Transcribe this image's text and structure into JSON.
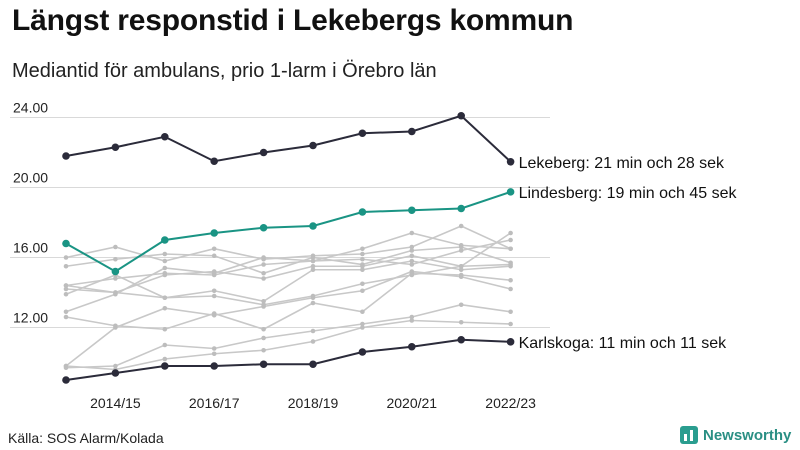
{
  "title": "Längst responstid i Lekebergs kommun",
  "subtitle": "Mediantid för ambulans, prio 1-larm i Örebro län",
  "source": "Källa: SOS Alarm/Kolada",
  "logo_text": "Newsworthy",
  "chart_data": {
    "type": "line",
    "title": "Längst responstid i Lekebergs kommun",
    "subtitle": "Mediantid för ambulans, prio 1-larm i Örebro län",
    "x": [
      2013,
      2014,
      2015,
      2016,
      2017,
      2018,
      2019,
      2020,
      2021,
      2022,
      2023
    ],
    "x_tick_labels": [
      "2014/15",
      "2016/17",
      "2018/19",
      "2020/21",
      "2022/23"
    ],
    "ylim": [
      9.0,
      25.0
    ],
    "y_ticks": [
      12,
      16,
      20,
      24
    ],
    "y_tick_labels": [
      "12.00",
      "16.00",
      "20.00",
      "24.00"
    ],
    "grid": true,
    "legend": "none",
    "highlight_series": [
      {
        "name": "Lekeberg",
        "label": "Lekeberg: 21 min och 28 sek",
        "color": "#2b2b3a",
        "values": [
          21.8,
          22.3,
          22.9,
          21.5,
          22.0,
          22.4,
          23.1,
          23.2,
          24.1,
          21.47,
          null
        ]
      },
      {
        "name": "Lindesberg",
        "label": "Lindesberg: 19 min och 45 sek",
        "color": "#1a9484",
        "values": [
          16.8,
          15.2,
          17.0,
          17.4,
          17.7,
          17.8,
          18.6,
          18.7,
          18.8,
          19.75,
          null
        ]
      },
      {
        "name": "Karlskoga",
        "label": "Karlskoga: 11 min och 11 sek",
        "color": "#2b2b3a",
        "values": [
          9.0,
          9.4,
          9.8,
          9.8,
          9.9,
          9.9,
          10.6,
          10.9,
          11.3,
          11.18,
          null
        ]
      }
    ],
    "background_series": [
      {
        "values": [
          16.0,
          16.6,
          15.8,
          16.5,
          15.9,
          16.1,
          16.2,
          16.6,
          17.8,
          16.5,
          null
        ]
      },
      {
        "values": [
          15.5,
          15.9,
          16.2,
          16.1,
          15.1,
          16.0,
          15.6,
          16.4,
          16.6,
          15.7,
          null
        ]
      },
      {
        "values": [
          14.4,
          14.8,
          15.1,
          15.0,
          15.6,
          15.8,
          15.9,
          15.6,
          16.4,
          17.0,
          null
        ]
      },
      {
        "values": [
          14.2,
          14.0,
          15.0,
          15.2,
          14.8,
          15.5,
          15.5,
          16.1,
          15.5,
          17.4,
          null
        ]
      },
      {
        "values": [
          12.9,
          13.9,
          15.4,
          15.1,
          16.0,
          15.8,
          16.5,
          17.4,
          16.7,
          16.5,
          null
        ]
      },
      {
        "values": [
          13.9,
          15.0,
          13.7,
          14.1,
          13.5,
          15.3,
          15.3,
          15.8,
          15.3,
          15.5,
          null
        ]
      },
      {
        "values": [
          12.6,
          12.1,
          11.9,
          12.8,
          11.9,
          13.4,
          12.9,
          15.1,
          15.0,
          14.7,
          null
        ]
      },
      {
        "values": [
          9.8,
          12.0,
          13.1,
          12.7,
          13.2,
          13.7,
          14.1,
          15.2,
          14.9,
          14.2,
          null
        ]
      },
      {
        "values": [
          9.7,
          9.8,
          11.0,
          10.8,
          11.4,
          11.8,
          12.2,
          12.6,
          13.3,
          12.9,
          null
        ]
      },
      {
        "values": [
          9.8,
          9.6,
          10.2,
          10.5,
          10.7,
          11.2,
          12.0,
          12.4,
          12.3,
          12.2,
          null
        ]
      },
      {
        "values": [
          14.4,
          14.0,
          13.7,
          13.8,
          13.3,
          13.8,
          14.5,
          15.0,
          15.5,
          15.6,
          null
        ]
      }
    ]
  }
}
